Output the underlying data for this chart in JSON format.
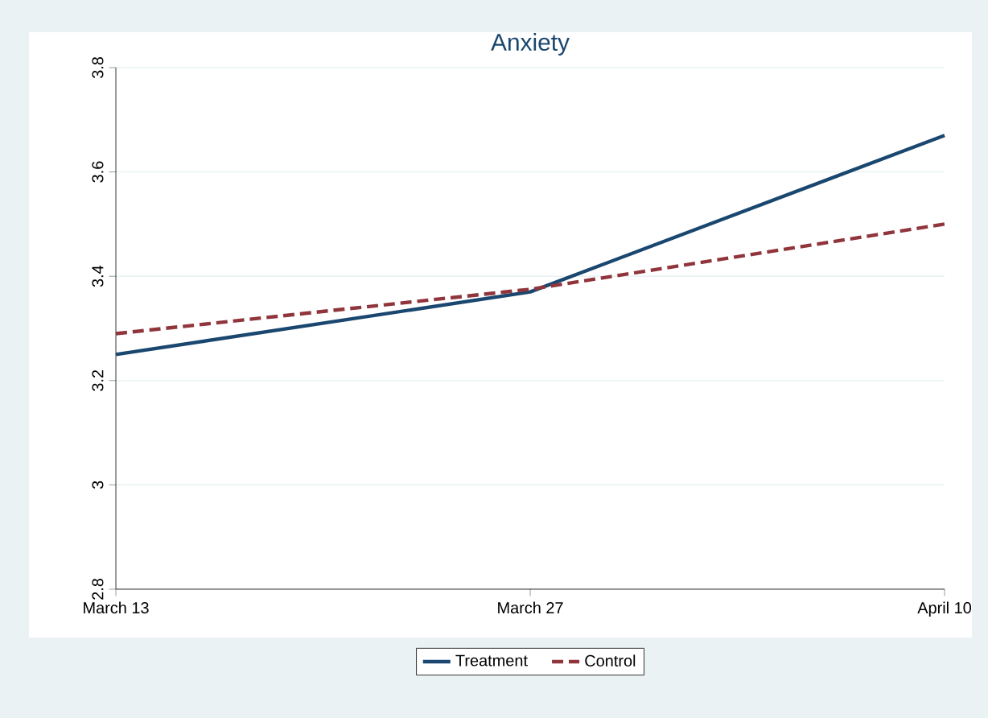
{
  "chart_data": {
    "type": "line",
    "title": "Anxiety",
    "categories": [
      "March 13",
      "March 27",
      "April 10"
    ],
    "series": [
      {
        "name": "Treatment",
        "color": "#1a476f",
        "values": [
          3.25,
          3.37,
          3.67
        ],
        "line_style": "solid"
      },
      {
        "name": "Control",
        "color": "#90353b",
        "values": [
          3.29,
          3.375,
          3.5
        ],
        "line_style": "dashed"
      }
    ],
    "ylim": [
      2.8,
      3.8
    ],
    "yticks": [
      2.8,
      3,
      3.2,
      3.4,
      3.6,
      3.8
    ],
    "grid": "y",
    "legend": "bottom",
    "marker": "none"
  }
}
